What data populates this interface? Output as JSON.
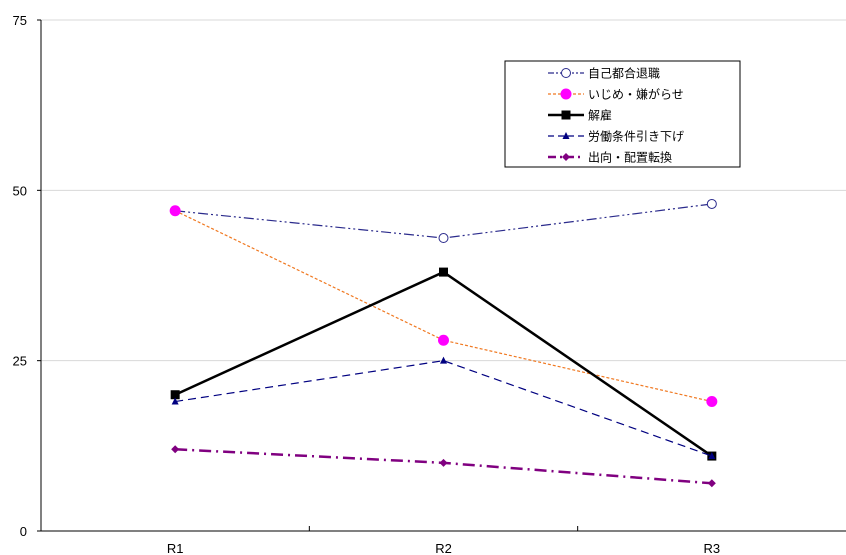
{
  "chart_data": {
    "type": "line",
    "categories": [
      "R1",
      "R2",
      "R3"
    ],
    "ylim": [
      0,
      75
    ],
    "yticks": [
      0,
      25,
      50,
      75
    ],
    "grid": "horizontal",
    "legend_position": "top-right",
    "series": [
      {
        "name": "自己都合退職",
        "values": [
          47,
          43,
          48
        ],
        "color": "#2b2b8c",
        "marker": "open-circle",
        "dash": "dash-dot-dot"
      },
      {
        "name": "いじめ・嫌がらせ",
        "values": [
          47,
          28,
          19
        ],
        "color": "#f07820",
        "marker": "circle",
        "marker_color": "#ff00ff",
        "dash": "dotted"
      },
      {
        "name": "解雇",
        "values": [
          20,
          38,
          11
        ],
        "color": "#000000",
        "marker": "square",
        "dash": "solid"
      },
      {
        "name": "労働条件引き下げ",
        "values": [
          19,
          25,
          11
        ],
        "color": "#000080",
        "marker": "triangle",
        "dash": "dashed"
      },
      {
        "name": "出向・配置転換",
        "values": [
          12,
          10,
          7
        ],
        "color": "#800080",
        "marker": "diamond",
        "dash": "dash-dot"
      }
    ]
  }
}
